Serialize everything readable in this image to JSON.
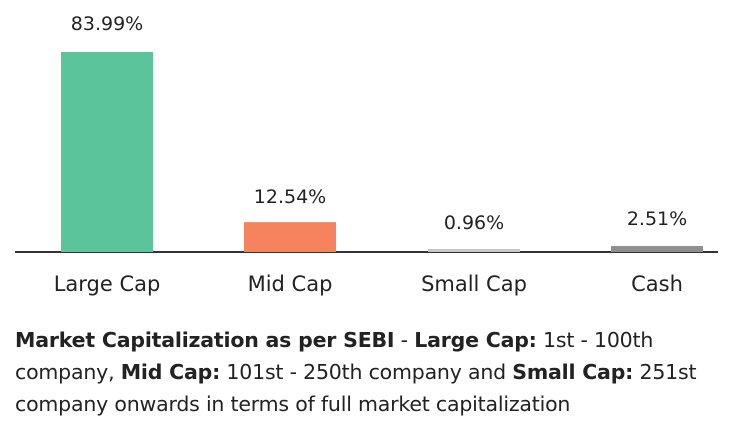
{
  "chart_data": {
    "type": "bar",
    "title": "",
    "xlabel": "",
    "ylabel": "",
    "ylim": [
      0,
      100
    ],
    "grid": false,
    "categories": [
      "Large Cap",
      "Mid Cap",
      "Small Cap",
      "Cash"
    ],
    "values": [
      83.99,
      12.54,
      0.96,
      2.51
    ],
    "value_labels": [
      "83.99%",
      "12.54%",
      "0.96%",
      "2.51%"
    ],
    "colors": [
      "#5cc49a",
      "#f5835e",
      "#c8c8c8",
      "#8f8f8f"
    ]
  },
  "caption": {
    "market_cap_term": "Market Capitalization as per SEBI",
    "separator": " - ",
    "large_cap_term": "Large Cap:",
    "large_cap_desc": " 1st - 100th company, ",
    "mid_cap_term": "Mid Cap:",
    "mid_cap_desc": " 101st - 250th company and ",
    "small_cap_term": "Small Cap:",
    "small_cap_desc": " 251st company onwards in terms of full market capitalization"
  }
}
